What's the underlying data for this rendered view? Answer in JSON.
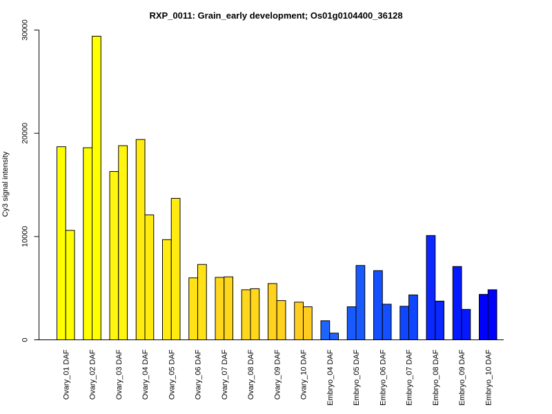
{
  "chart_data": {
    "type": "bar",
    "title": "RXP_0011: Grain_early development; Os01g0104400_36128",
    "ylabel": "Cy3 signal intensity",
    "xlabel": "",
    "ylim": [
      0,
      30000
    ],
    "yticks": [
      0,
      10000,
      20000,
      30000
    ],
    "grid": false,
    "legend": "none",
    "categories": [
      "Ovary_01 DAF",
      "Ovary_02 DAF",
      "Ovary_03 DAF",
      "Ovary_04 DAF",
      "Ovary_05 DAF",
      "Ovary_06 DAF",
      "Ovary_07 DAF",
      "Ovary_08 DAF",
      "Ovary_09 DAF",
      "Ovary_10 DAF",
      "Embryo_04 DAF",
      "Embryo_05 DAF",
      "Embryo_06 DAF",
      "Embryo_07 DAF",
      "Embryo_08 DAF",
      "Embryo_09 DAF",
      "Embryo_10 DAF"
    ],
    "series": [
      {
        "values": [
          18700,
          18600,
          16300,
          19400,
          9700,
          6000,
          6050,
          4850,
          5450,
          3650,
          1850,
          3200,
          6700,
          3250,
          10100,
          7100,
          4400
        ]
      },
      {
        "values": [
          10600,
          29400,
          18800,
          12100,
          13700,
          7300,
          6100,
          4950,
          3800,
          3200,
          650,
          7200,
          3450,
          4350,
          3750,
          2950,
          4850
        ]
      }
    ],
    "colors": [
      "#ffff00",
      "#ffff00",
      "#fff50f",
      "#ffeb0f",
      "#ffeb0f",
      "#ffe116",
      "#ffd71c",
      "#ffd71c",
      "#ffd21f",
      "#ffcd22",
      "#1e64ff",
      "#195aff",
      "#1450ff",
      "#0f46ff",
      "#0a28ff",
      "#0519ff",
      "#0000ff"
    ]
  }
}
